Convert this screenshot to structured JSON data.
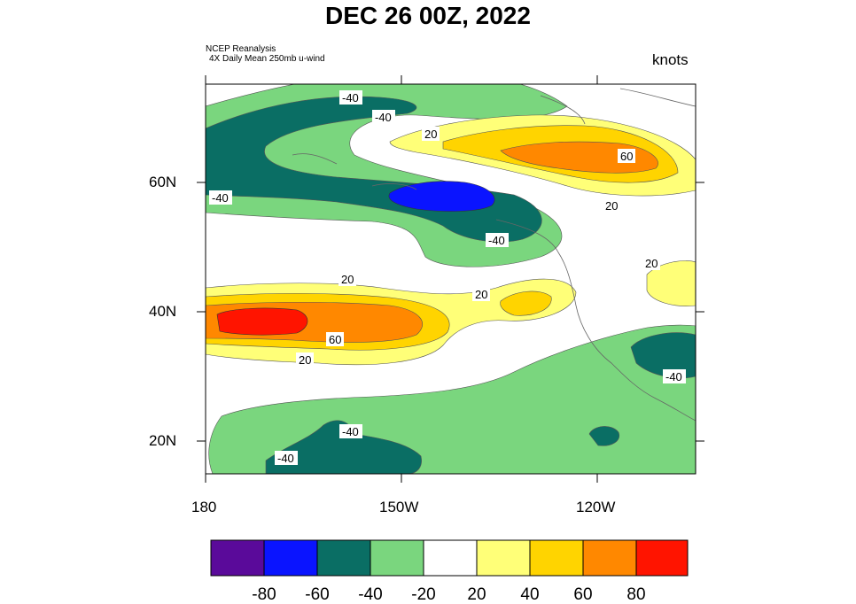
{
  "title": "DEC 26 00Z, 2022",
  "source_line1": "NCEP Reanalysis",
  "source_line2": "4X Daily Mean 250mb u-wind",
  "units": "knots",
  "axes": {
    "lat_labels": [
      "60N",
      "40N",
      "20N"
    ],
    "lon_labels": [
      "180",
      "150W",
      "120W"
    ]
  },
  "contour_labels": {
    "neg": "-40",
    "pos20": "20",
    "pos60": "60"
  },
  "colorbar": {
    "labels": [
      "-80",
      "-60",
      "-40",
      "-20",
      "20",
      "40",
      "60",
      "80"
    ],
    "colors": [
      "#5a0a9a",
      "#0a14ff",
      "#0a6e64",
      "#7ad67e",
      "#ffffff",
      "#ffff78",
      "#ffd400",
      "#ff8800",
      "#ff1400"
    ]
  }
}
